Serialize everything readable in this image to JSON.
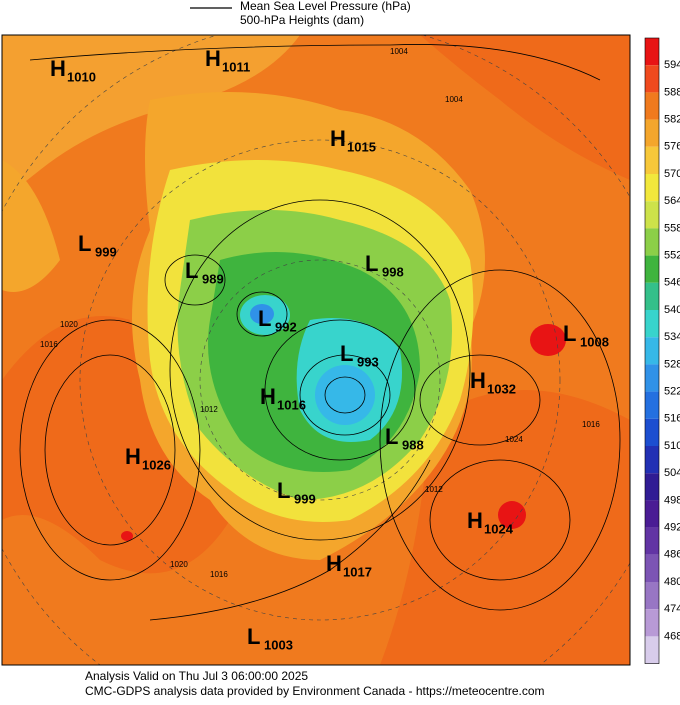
{
  "legend": {
    "pressure": "Mean Sea Level Pressure (hPa)",
    "heights": "500-hPa Heights (dam)"
  },
  "systems": [
    {
      "type": "H",
      "value": 1010
    },
    {
      "type": "H",
      "value": 1011
    },
    {
      "type": "H",
      "value": 1015
    },
    {
      "type": "L",
      "value": 999
    },
    {
      "type": "L",
      "value": 989
    },
    {
      "type": "L",
      "value": 998
    },
    {
      "type": "L",
      "value": 992
    },
    {
      "type": "L",
      "value": 993
    },
    {
      "type": "L",
      "value": 1008
    },
    {
      "type": "H",
      "value": 1032
    },
    {
      "type": "H",
      "value": 1016
    },
    {
      "type": "H",
      "value": 1026
    },
    {
      "type": "L",
      "value": 988
    },
    {
      "type": "L",
      "value": 999
    },
    {
      "type": "H",
      "value": 1024
    },
    {
      "type": "H",
      "value": 1017
    },
    {
      "type": "L",
      "value": 1003
    }
  ],
  "isobar_labels": [
    1004,
    1020,
    1016,
    1016,
    1012,
    1024,
    1020,
    1016,
    1004,
    1012
  ],
  "colorbar": {
    "labels": [
      594,
      588,
      582,
      576,
      570,
      564,
      558,
      552,
      546,
      540,
      534,
      528,
      522,
      516,
      510,
      504,
      498,
      492,
      486,
      480,
      474,
      468
    ],
    "colors": [
      "#e81414",
      "#f04a1e",
      "#f07a1e",
      "#f4a62c",
      "#f7c83a",
      "#f2e83c",
      "#cde24a",
      "#8ccf48",
      "#3fb43e",
      "#34c08a",
      "#38d4cc",
      "#36b8e8",
      "#3092e8",
      "#2470e0",
      "#1c4ed0",
      "#2230b4",
      "#301c94",
      "#4a1c94",
      "#6234a4",
      "#7c54b4",
      "#9876c4",
      "#b89ad6",
      "#d8cceb"
    ]
  },
  "footer": {
    "line1": "Analysis Valid on Thu Jul  3 06:00:00 2025",
    "line2": "CMC-GDPS analysis data provided by Environment Canada - https://meteocentre.com"
  }
}
